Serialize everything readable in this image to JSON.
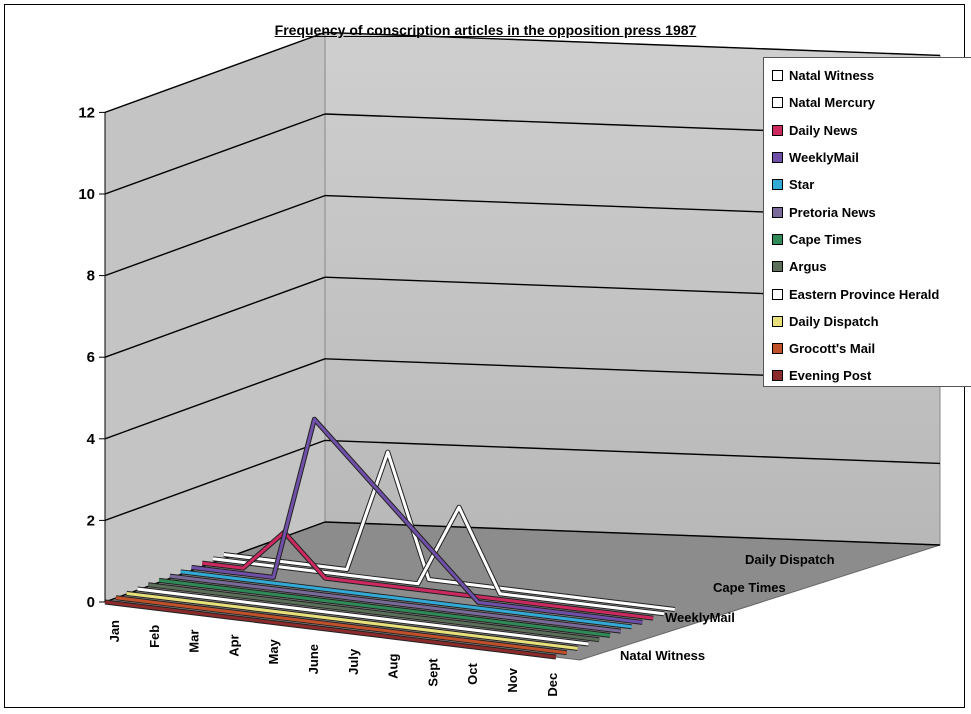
{
  "chart_data": {
    "type": "line",
    "title": "Frequency of conscription articles in the opposition press 1987",
    "categories": [
      "Jan",
      "Feb",
      "Mar",
      "Apr",
      "May",
      "June",
      "July",
      "Aug",
      "Sept",
      "Oct",
      "Nov",
      "Dec"
    ],
    "depth_labels": [
      "Daily Dispatch",
      "Cape Times",
      "WeeklyMail",
      "Natal Witness"
    ],
    "ylim": [
      0,
      12
    ],
    "yticks": [
      "0",
      "2",
      "4",
      "6",
      "8",
      "10",
      "12"
    ],
    "legend_position": "right",
    "series": [
      {
        "name": "Natal Witness",
        "color": "#ffffff",
        "values": [
          0,
          0,
          0,
          0,
          3,
          0,
          0,
          0,
          0,
          0,
          0,
          0
        ]
      },
      {
        "name": "Natal Mercury",
        "color": "#ffffff",
        "values": [
          0,
          0,
          0,
          0,
          0,
          0,
          2,
          0,
          0,
          0,
          0,
          0
        ]
      },
      {
        "name": "Daily News",
        "color": "#cc2a5e",
        "values": [
          0,
          0,
          1,
          0,
          0,
          0,
          0,
          0,
          0,
          0,
          0,
          0
        ]
      },
      {
        "name": "WeeklyMail",
        "color": "#6f4fa8",
        "values": [
          0,
          0,
          0,
          4,
          3,
          2,
          1,
          0,
          0,
          0,
          0,
          0
        ]
      },
      {
        "name": "Star",
        "color": "#33a9d6",
        "values": [
          0,
          0,
          0,
          0,
          0,
          0,
          0,
          0,
          0,
          0,
          0,
          0
        ]
      },
      {
        "name": "Pretoria News",
        "color": "#7a6a9a",
        "values": [
          0,
          0,
          0,
          0,
          0,
          0,
          0,
          0,
          0,
          0,
          0,
          0
        ]
      },
      {
        "name": "Cape Times",
        "color": "#2f8a57",
        "values": [
          0,
          0,
          0,
          0,
          0,
          0,
          0,
          0,
          0,
          0,
          0,
          0
        ]
      },
      {
        "name": "Argus",
        "color": "#5a6e5a",
        "values": [
          0,
          0,
          0,
          0,
          0,
          0,
          0,
          0,
          0,
          0,
          0,
          0
        ]
      },
      {
        "name": "Eastern Province Herald",
        "color": "#ffffff",
        "values": [
          0,
          0,
          0,
          0,
          0,
          0,
          0,
          0,
          0,
          0,
          0,
          0
        ]
      },
      {
        "name": "Daily Dispatch",
        "color": "#e8e07a",
        "values": [
          0,
          0,
          0,
          0,
          0,
          0,
          0,
          0,
          0,
          0,
          0,
          0
        ]
      },
      {
        "name": "Grocott's Mail",
        "color": "#c0502a",
        "values": [
          0,
          0,
          0,
          0,
          0,
          0,
          0,
          0,
          0,
          0,
          0,
          0
        ]
      },
      {
        "name": "Evening Post",
        "color": "#8a2a2a",
        "values": [
          0,
          0,
          0,
          0,
          0,
          0,
          0,
          0,
          0,
          0,
          0,
          0
        ]
      }
    ]
  }
}
